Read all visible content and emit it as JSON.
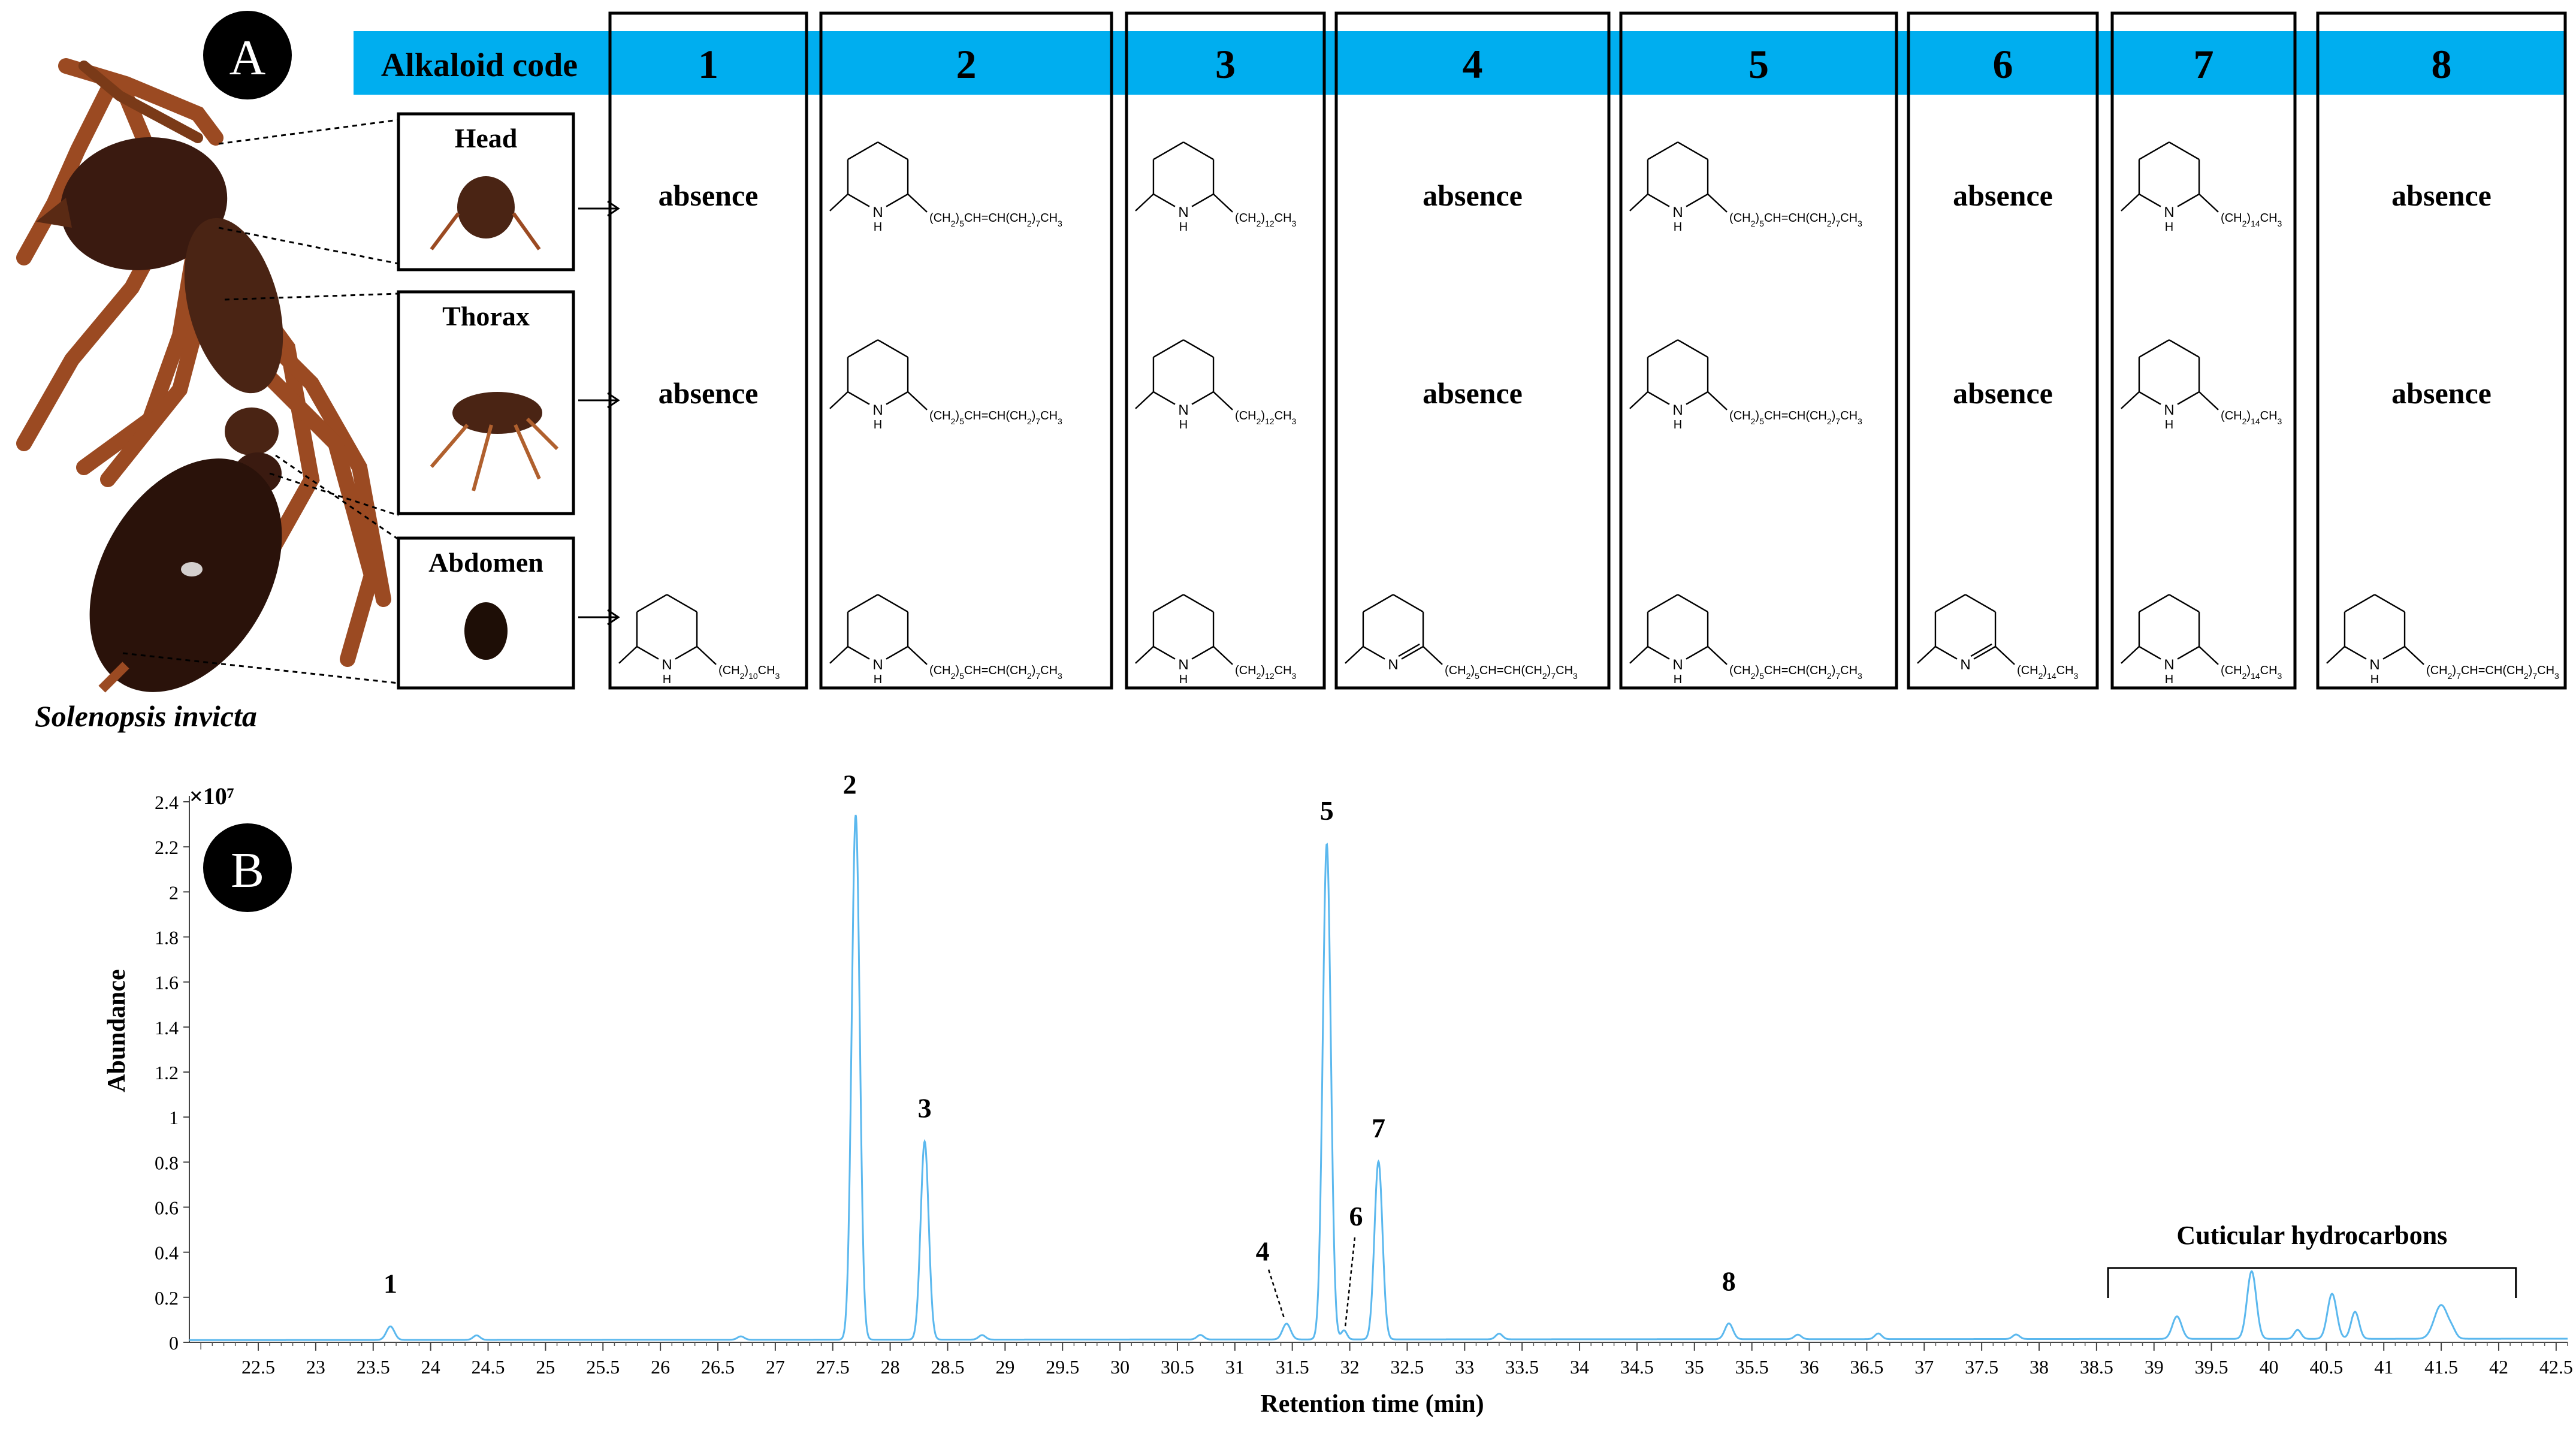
{
  "panel_a": {
    "label": "A",
    "header_label": "Alkaloid code",
    "species_name": "Solenopsis invicta",
    "body_parts": [
      {
        "label": "Head"
      },
      {
        "label": "Thorax"
      },
      {
        "label": "Abdomen"
      }
    ],
    "columns": [
      {
        "code": "1",
        "rows": [
          {
            "type": "absent",
            "text": "absence"
          },
          {
            "type": "absent",
            "text": "absence"
          },
          {
            "type": "piperidine",
            "chain": "(CH2)10CH3"
          }
        ]
      },
      {
        "code": "2",
        "rows": [
          {
            "type": "piperidine",
            "chain": "(CH2)5CH=CH(CH2)7CH3"
          },
          {
            "type": "piperidine",
            "chain": "(CH2)5CH=CH(CH2)7CH3"
          },
          {
            "type": "piperidine",
            "chain": "(CH2)5CH=CH(CH2)7CH3"
          }
        ]
      },
      {
        "code": "3",
        "rows": [
          {
            "type": "piperidine",
            "chain": "(CH2)12CH3"
          },
          {
            "type": "piperidine",
            "chain": "(CH2)12CH3"
          },
          {
            "type": "piperidine",
            "chain": "(CH2)12CH3"
          }
        ]
      },
      {
        "code": "4",
        "rows": [
          {
            "type": "absent",
            "text": "absence"
          },
          {
            "type": "absent",
            "text": "absence"
          },
          {
            "type": "piperideine",
            "chain": "(CH2)5CH=CH(CH2)7CH3"
          }
        ]
      },
      {
        "code": "5",
        "rows": [
          {
            "type": "piperidine",
            "chain": "(CH2)5CH=CH(CH2)7CH3"
          },
          {
            "type": "piperidine",
            "chain": "(CH2)5CH=CH(CH2)7CH3"
          },
          {
            "type": "piperidine",
            "chain": "(CH2)5CH=CH(CH2)7CH3"
          }
        ]
      },
      {
        "code": "6",
        "rows": [
          {
            "type": "absent",
            "text": "absence"
          },
          {
            "type": "absent",
            "text": "absence"
          },
          {
            "type": "piperideine",
            "chain": "(CH2)14CH3"
          }
        ]
      },
      {
        "code": "7",
        "rows": [
          {
            "type": "piperidine",
            "chain": "(CH2)14CH3"
          },
          {
            "type": "piperidine",
            "chain": "(CH2)14CH3"
          },
          {
            "type": "piperidine",
            "chain": "(CH2)14CH3"
          }
        ]
      },
      {
        "code": "8",
        "rows": [
          {
            "type": "absent",
            "text": "absence"
          },
          {
            "type": "absent",
            "text": "absence"
          },
          {
            "type": "piperidine",
            "chain": "(CH2)7CH=CH(CH2)7CH3"
          }
        ]
      }
    ],
    "colors": {
      "header_band": "#00AEEF",
      "ant_body": "#3a1a10",
      "ant_legs": "#9b4a22"
    }
  },
  "chart_data": {
    "type": "line",
    "panel_label": "B",
    "xlabel": "Retention time (min)",
    "ylabel": "Abundance",
    "y_multiplier": "×10⁷",
    "xlim": [
      21.9,
      42.6
    ],
    "ylim": [
      0,
      2.4
    ],
    "x_ticks": [
      22.5,
      23,
      23.5,
      24,
      24.5,
      25,
      25.5,
      26,
      26.5,
      27,
      27.5,
      28,
      28.5,
      29,
      29.5,
      30,
      30.5,
      31,
      31.5,
      32,
      32.5,
      33,
      33.5,
      34,
      34.5,
      35,
      35.5,
      36,
      36.5,
      37,
      37.5,
      38,
      38.5,
      39,
      39.5,
      40,
      40.5,
      41,
      41.5,
      42,
      42.5
    ],
    "y_ticks": [
      0,
      0.2,
      0.4,
      0.6,
      0.8,
      1,
      1.2,
      1.4,
      1.6,
      1.8,
      2,
      2.2,
      2.4
    ],
    "baseline": 0.01,
    "line_color": "#5BB8EE",
    "peaks": [
      {
        "x": 23.65,
        "y": 0.06,
        "w": 0.035
      },
      {
        "x": 24.4,
        "y": 0.02,
        "w": 0.03
      },
      {
        "x": 26.7,
        "y": 0.015,
        "w": 0.03
      },
      {
        "x": 27.7,
        "y": 2.33,
        "w": 0.035
      },
      {
        "x": 28.3,
        "y": 0.88,
        "w": 0.035
      },
      {
        "x": 28.8,
        "y": 0.02,
        "w": 0.03
      },
      {
        "x": 30.7,
        "y": 0.02,
        "w": 0.03
      },
      {
        "x": 31.45,
        "y": 0.07,
        "w": 0.035
      },
      {
        "x": 31.8,
        "y": 2.2,
        "w": 0.035
      },
      {
        "x": 31.95,
        "y": 0.04,
        "w": 0.025
      },
      {
        "x": 32.25,
        "y": 0.79,
        "w": 0.035
      },
      {
        "x": 33.3,
        "y": 0.025,
        "w": 0.03
      },
      {
        "x": 35.3,
        "y": 0.07,
        "w": 0.035
      },
      {
        "x": 35.9,
        "y": 0.02,
        "w": 0.03
      },
      {
        "x": 36.6,
        "y": 0.025,
        "w": 0.03
      },
      {
        "x": 37.8,
        "y": 0.02,
        "w": 0.03
      },
      {
        "x": 39.2,
        "y": 0.1,
        "w": 0.04
      },
      {
        "x": 39.85,
        "y": 0.3,
        "w": 0.04
      },
      {
        "x": 40.25,
        "y": 0.04,
        "w": 0.03
      },
      {
        "x": 40.55,
        "y": 0.2,
        "w": 0.04
      },
      {
        "x": 40.75,
        "y": 0.12,
        "w": 0.035
      },
      {
        "x": 41.5,
        "y": 0.15,
        "w": 0.06
      },
      {
        "x": 41.6,
        "y": 0.02,
        "w": 0.03
      }
    ],
    "peak_labels": [
      {
        "label": "1",
        "x": 23.65,
        "y": 0.06
      },
      {
        "label": "2",
        "x": 27.7,
        "y": 2.33
      },
      {
        "label": "3",
        "x": 28.3,
        "y": 0.88
      },
      {
        "label": "4",
        "x": 31.45,
        "y": 0.07
      },
      {
        "label": "5",
        "x": 31.8,
        "y": 2.2
      },
      {
        "label": "6",
        "x": 31.95,
        "y": 0.04
      },
      {
        "label": "7",
        "x": 32.25,
        "y": 0.79
      },
      {
        "label": "8",
        "x": 35.3,
        "y": 0.07
      }
    ],
    "annotation": {
      "text": "Cuticular hydrocarbons",
      "x_start": 38.6,
      "x_end": 42.15
    }
  }
}
